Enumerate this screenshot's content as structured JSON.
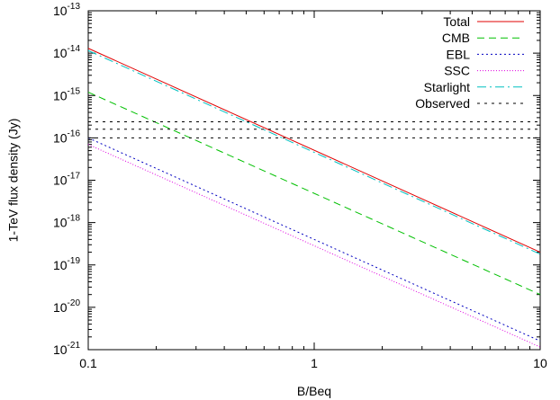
{
  "chart_data": {
    "type": "line",
    "title": "",
    "xlabel": "B/Beq",
    "ylabel": "1-TeV flux density (Jy)",
    "xscale": "log",
    "yscale": "log",
    "xlim": [
      0.1,
      10
    ],
    "ylim": [
      1e-21,
      1e-13
    ],
    "x_ticks": [
      {
        "value": 0.1,
        "label": "0.1"
      },
      {
        "value": 1,
        "label": "1"
      },
      {
        "value": 10,
        "label": "10"
      }
    ],
    "y_ticks": [
      {
        "value": 1e-21,
        "exp": "-21"
      },
      {
        "value": 1e-20,
        "exp": "-20"
      },
      {
        "value": 1e-19,
        "exp": "-19"
      },
      {
        "value": 1e-18,
        "exp": "-18"
      },
      {
        "value": 1e-17,
        "exp": "-17"
      },
      {
        "value": 1e-16,
        "exp": "-16"
      },
      {
        "value": 1e-15,
        "exp": "-15"
      },
      {
        "value": 1e-14,
        "exp": "-14"
      },
      {
        "value": 1e-13,
        "exp": "-13"
      }
    ],
    "grid": false,
    "legend_position": "top-right",
    "series": [
      {
        "name": "Total",
        "color": "#e00000",
        "dash": "",
        "x": [
          0.1,
          10
        ],
        "y": [
          1.3e-14,
          2e-19
        ]
      },
      {
        "name": "CMB",
        "color": "#00c000",
        "dash": "8,5",
        "x": [
          0.1,
          10
        ],
        "y": [
          1.2e-15,
          2e-20
        ]
      },
      {
        "name": "EBL",
        "color": "#0000c0",
        "dash": "2,3",
        "x": [
          0.1,
          10
        ],
        "y": [
          1e-16,
          1.6e-21
        ]
      },
      {
        "name": "SSC",
        "color": "#e000e0",
        "dash": "1,2",
        "x": [
          0.1,
          10
        ],
        "y": [
          7e-17,
          1.15e-21
        ]
      },
      {
        "name": "Starlight",
        "color": "#00c0c0",
        "dash": "10,4,2,4",
        "x": [
          0.1,
          10
        ],
        "y": [
          1.15e-14,
          1.8e-19
        ]
      },
      {
        "name": "Observed",
        "color": "#000000",
        "dash": "3,5",
        "x": [
          0.1,
          10
        ],
        "y": [
          2.4e-16,
          2.4e-16
        ]
      },
      {
        "name": "",
        "color": "#000000",
        "dash": "3,5",
        "x": [
          0.1,
          10
        ],
        "y": [
          1.6e-16,
          1.6e-16
        ]
      },
      {
        "name": "",
        "color": "#000000",
        "dash": "3,5",
        "x": [
          0.1,
          10
        ],
        "y": [
          1e-16,
          1e-16
        ]
      }
    ]
  }
}
